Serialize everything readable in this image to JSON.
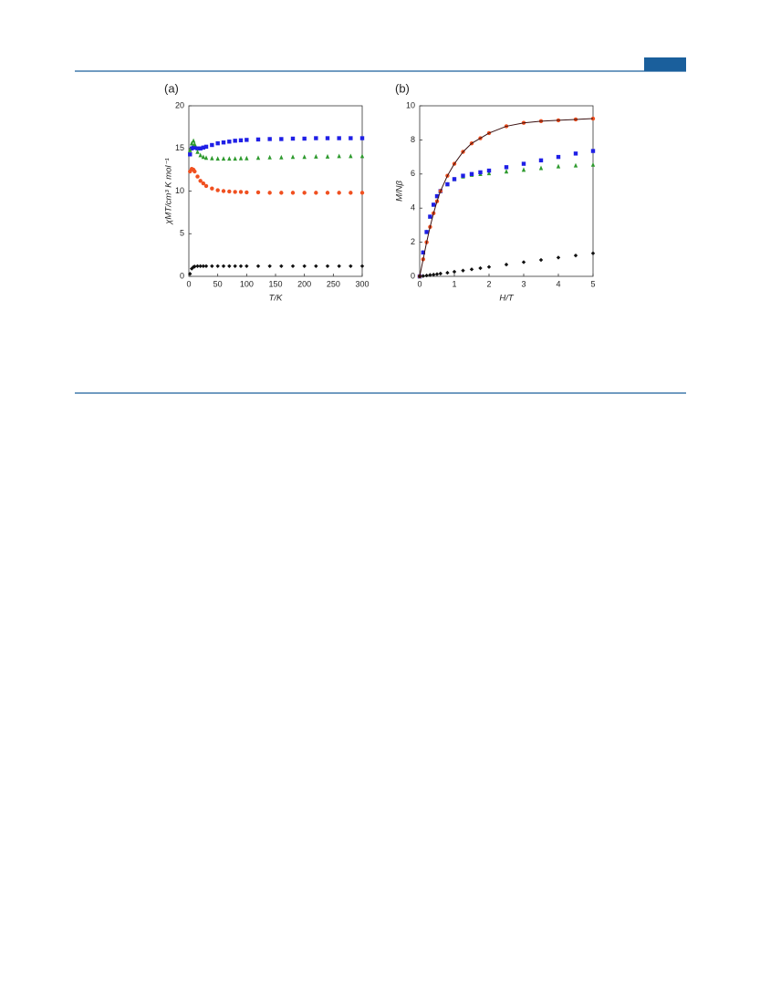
{
  "chart_data": [
    {
      "type": "scatter",
      "label": "(a)",
      "xlabel": "T/K",
      "ylabel": "χMT/cm³ K mol⁻¹",
      "xlim": [
        0,
        300
      ],
      "xticks": [
        0,
        50,
        100,
        150,
        200,
        250,
        300
      ],
      "ylim": [
        0,
        20
      ],
      "yticks": [
        0,
        5,
        10,
        15,
        20
      ],
      "x": [
        2,
        5,
        8,
        10,
        15,
        20,
        25,
        30,
        40,
        50,
        60,
        70,
        80,
        90,
        100,
        120,
        140,
        160,
        180,
        200,
        220,
        240,
        260,
        280,
        300
      ],
      "series": [
        {
          "color": "#1f1fe6",
          "marker": "square",
          "values": [
            14.3,
            15.0,
            15.1,
            15.1,
            15.0,
            15.0,
            15.1,
            15.2,
            15.4,
            15.6,
            15.7,
            15.8,
            15.9,
            15.95,
            16.0,
            16.05,
            16.1,
            16.1,
            16.15,
            16.15,
            16.2,
            16.2,
            16.2,
            16.2,
            16.2
          ]
        },
        {
          "color": "#2e9a2e",
          "marker": "triangle",
          "values": [
            14.8,
            15.6,
            15.9,
            15.5,
            14.6,
            14.2,
            14.0,
            13.9,
            13.85,
            13.8,
            13.8,
            13.8,
            13.8,
            13.85,
            13.85,
            13.9,
            13.95,
            13.95,
            14.0,
            14.0,
            14.05,
            14.05,
            14.1,
            14.1,
            14.1
          ]
        },
        {
          "color": "#f05020",
          "marker": "circle",
          "values": [
            12.3,
            12.6,
            12.5,
            12.3,
            11.7,
            11.2,
            10.9,
            10.6,
            10.3,
            10.1,
            10.0,
            9.95,
            9.9,
            9.9,
            9.85,
            9.85,
            9.8,
            9.8,
            9.8,
            9.8,
            9.8,
            9.8,
            9.8,
            9.8,
            9.8
          ]
        },
        {
          "color": "#111111",
          "marker": "diamond",
          "values": [
            0.3,
            0.9,
            1.1,
            1.15,
            1.2,
            1.2,
            1.2,
            1.2,
            1.2,
            1.2,
            1.2,
            1.2,
            1.2,
            1.2,
            1.2,
            1.2,
            1.2,
            1.2,
            1.2,
            1.2,
            1.2,
            1.2,
            1.2,
            1.2,
            1.2
          ]
        }
      ]
    },
    {
      "type": "scatter",
      "label": "(b)",
      "xlabel": "H/T",
      "ylabel": "M/Nβ",
      "xlim": [
        0,
        5
      ],
      "xticks": [
        0,
        1,
        2,
        3,
        4,
        5
      ],
      "ylim": [
        0,
        10
      ],
      "yticks": [
        0,
        2,
        4,
        6,
        8,
        10
      ],
      "x": [
        0,
        0.1,
        0.2,
        0.3,
        0.4,
        0.5,
        0.6,
        0.8,
        1,
        1.25,
        1.5,
        1.75,
        2,
        2.5,
        3,
        3.5,
        4,
        4.5,
        5
      ],
      "series": [
        {
          "color": "#2e9a2e",
          "marker": "triangle",
          "values": [
            0,
            1.4,
            2.6,
            3.5,
            4.2,
            4.7,
            5.0,
            5.4,
            5.7,
            5.85,
            5.95,
            6.0,
            6.05,
            6.15,
            6.25,
            6.35,
            6.45,
            6.5,
            6.55
          ]
        },
        {
          "color": "#1f1fe6",
          "marker": "square",
          "values": [
            0,
            1.4,
            2.6,
            3.5,
            4.2,
            4.7,
            5.0,
            5.4,
            5.7,
            5.9,
            6.0,
            6.1,
            6.2,
            6.4,
            6.6,
            6.8,
            7.0,
            7.2,
            7.35
          ]
        },
        {
          "color": "#f05020",
          "marker": "circle",
          "values": [
            0,
            1.0,
            2.0,
            2.9,
            3.7,
            4.4,
            5.0,
            5.9,
            6.6,
            7.3,
            7.8,
            8.1,
            8.4,
            8.8,
            9.0,
            9.1,
            9.15,
            9.2,
            9.25
          ]
        },
        {
          "color": "#3a1010",
          "marker": "line",
          "values": [
            0,
            1.0,
            2.0,
            2.9,
            3.7,
            4.4,
            5.0,
            5.9,
            6.6,
            7.3,
            7.8,
            8.1,
            8.4,
            8.8,
            9.0,
            9.1,
            9.15,
            9.2,
            9.25
          ]
        },
        {
          "color": "#111111",
          "marker": "diamond",
          "values": [
            0,
            0.02,
            0.05,
            0.08,
            0.1,
            0.13,
            0.16,
            0.21,
            0.27,
            0.34,
            0.41,
            0.48,
            0.55,
            0.69,
            0.83,
            0.96,
            1.1,
            1.22,
            1.35
          ]
        }
      ]
    }
  ]
}
